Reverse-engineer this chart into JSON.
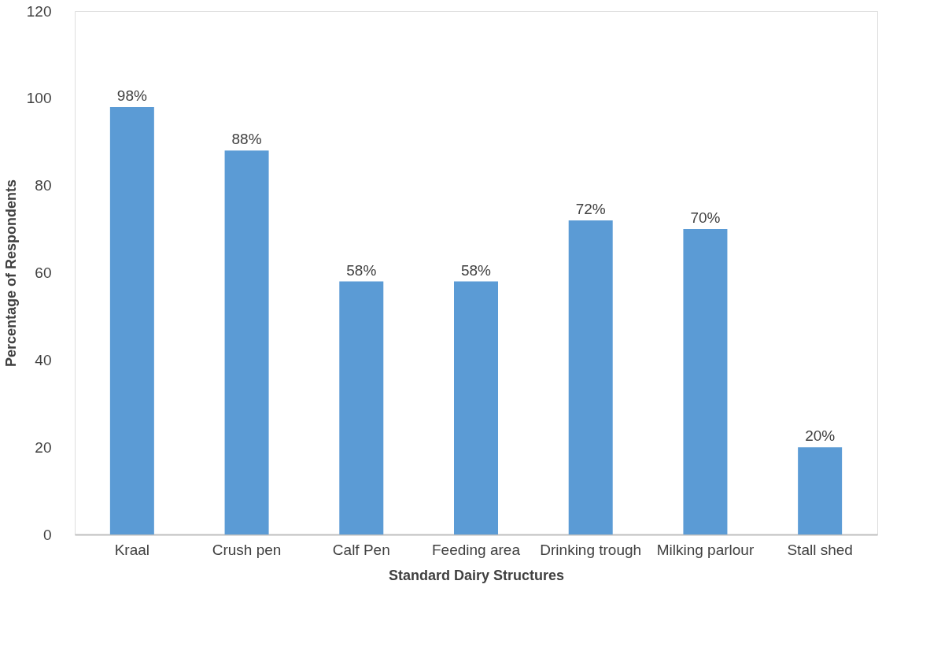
{
  "chart_data": {
    "type": "bar",
    "categories": [
      "Kraal",
      "Crush pen",
      "Calf Pen",
      "Feeding area",
      "Drinking trough",
      "Milking parlour",
      "Stall shed"
    ],
    "values": [
      98,
      88,
      58,
      58,
      72,
      70,
      20
    ],
    "value_labels": [
      "98%",
      "88%",
      "58%",
      "58%",
      "72%",
      "70%",
      "20%"
    ],
    "color": "#5b9bd5",
    "xlabel": "Standard Dairy Structures",
    "ylabel": "Percentage of Respondents",
    "ylim": [
      0,
      120
    ],
    "yticks": [
      0,
      20,
      40,
      60,
      80,
      100,
      120
    ],
    "grid": false
  }
}
